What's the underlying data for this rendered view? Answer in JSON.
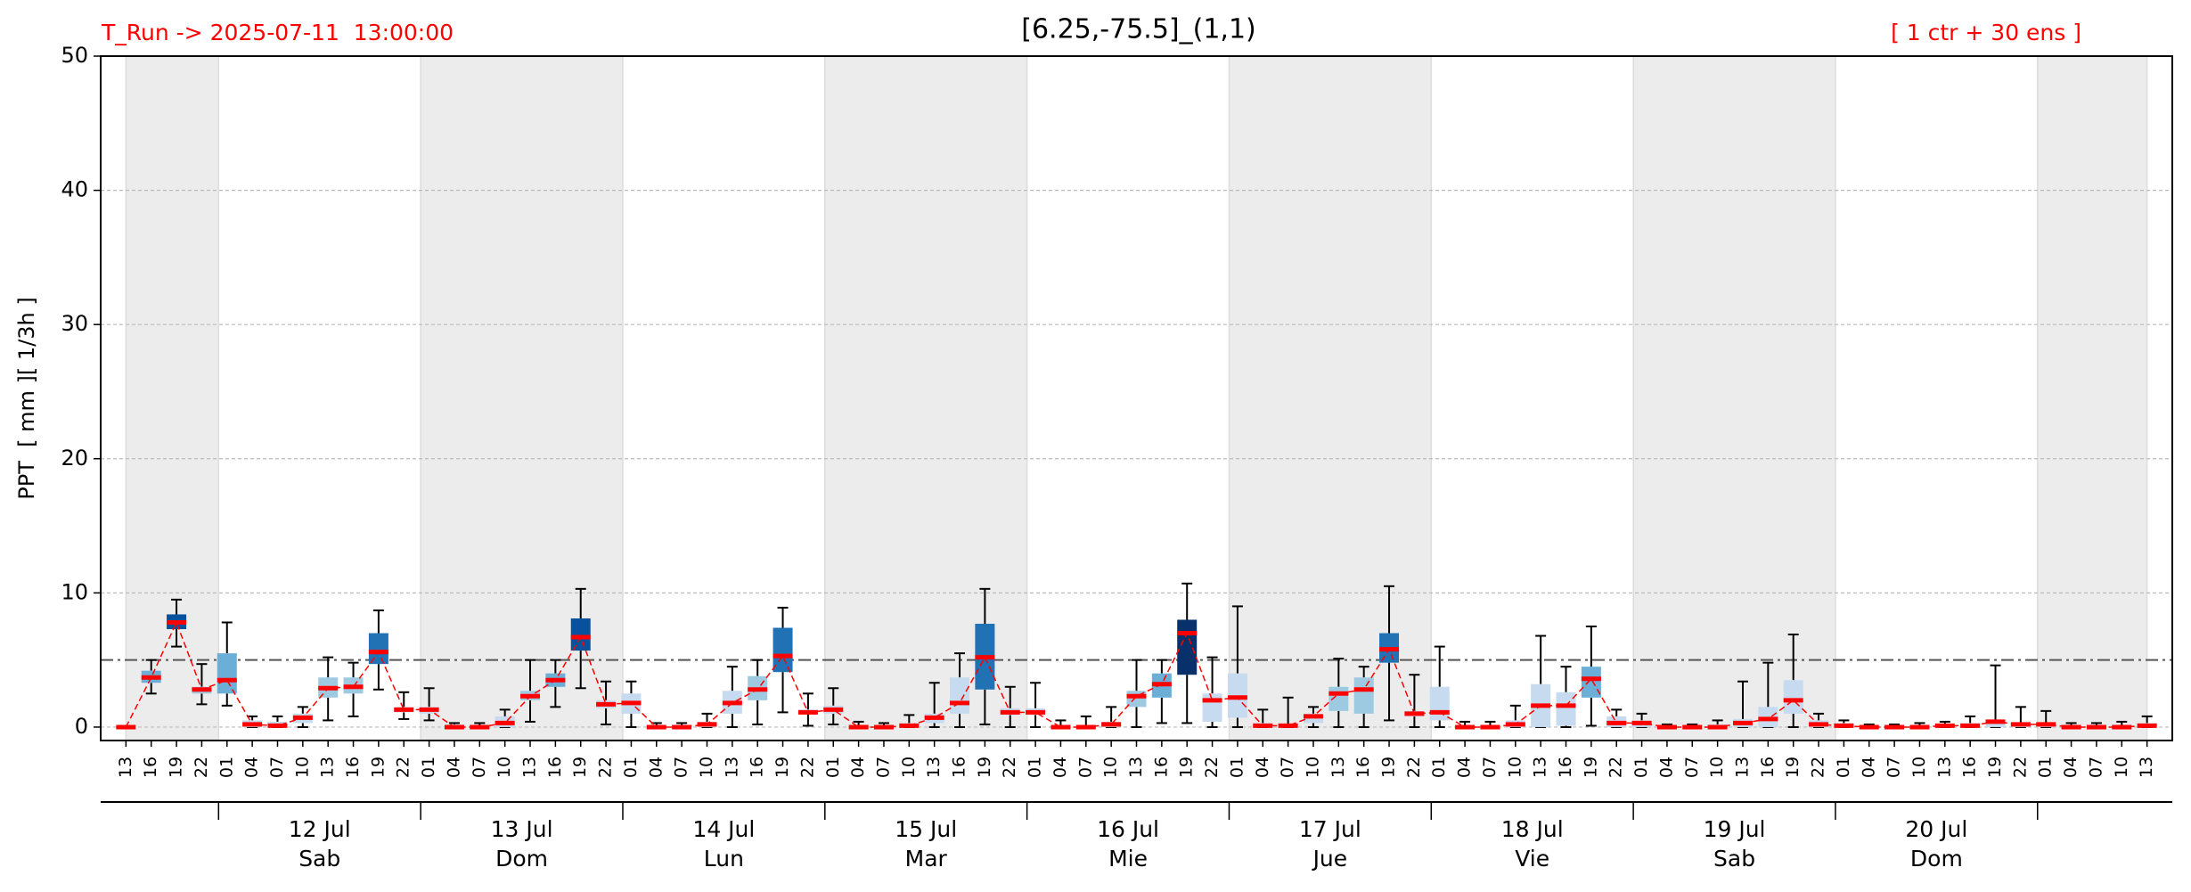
{
  "chart_data": {
    "type": "box",
    "title": "[6.25,-75.5]_(1,1)",
    "run_label": "T_Run -> 2025-07-11  13:00:00",
    "members_label": "[ 1 ctr + 30 ens ]",
    "y_label": "PPT  [ mm ][ 1/3h ]",
    "categories": [
      "13",
      "16",
      "19",
      "22",
      "01",
      "04",
      "07",
      "10",
      "13",
      "16",
      "19",
      "22",
      "01",
      "04",
      "07",
      "10",
      "13",
      "16",
      "19",
      "22",
      "01",
      "04",
      "07",
      "10",
      "13",
      "16",
      "19",
      "22",
      "01",
      "04",
      "07",
      "10",
      "13",
      "16",
      "19",
      "22",
      "01",
      "04",
      "07",
      "10",
      "13",
      "16",
      "19",
      "22",
      "01",
      "04",
      "07",
      "10",
      "13",
      "16",
      "19",
      "22",
      "01",
      "04",
      "07",
      "10",
      "13",
      "16",
      "19",
      "22",
      "01",
      "04",
      "07",
      "10",
      "13",
      "16",
      "19",
      "22",
      "01",
      "04",
      "07",
      "10",
      "13",
      "16",
      "19",
      "22",
      "01",
      "04",
      "07",
      "10",
      "13"
    ],
    "days": [
      {
        "date": "12 Jul",
        "weekday": "Sab"
      },
      {
        "date": "13 Jul",
        "weekday": "Dom"
      },
      {
        "date": "14 Jul",
        "weekday": "Lun"
      },
      {
        "date": "15 Jul",
        "weekday": "Mar"
      },
      {
        "date": "16 Jul",
        "weekday": "Mie"
      },
      {
        "date": "17 Jul",
        "weekday": "Jue"
      },
      {
        "date": "18 Jul",
        "weekday": "Vie"
      },
      {
        "date": "19 Jul",
        "weekday": "Sab"
      },
      {
        "date": "20 Jul",
        "weekday": "Dom"
      }
    ],
    "median": [
      0,
      3.7,
      7.8,
      2.8,
      3.5,
      0.2,
      0.1,
      0.7,
      2.9,
      3.0,
      5.6,
      1.3,
      1.3,
      0,
      0,
      0.3,
      2.3,
      3.5,
      6.7,
      1.7,
      1.8,
      0,
      0,
      0.2,
      1.8,
      2.8,
      5.3,
      1.1,
      1.3,
      0,
      0,
      0.1,
      0.7,
      1.8,
      5.2,
      1.1,
      1.1,
      0,
      0,
      0.2,
      2.3,
      3.2,
      7.0,
      2.0,
      2.2,
      0.1,
      0.1,
      0.8,
      2.5,
      2.8,
      5.8,
      1.0,
      1.1,
      0,
      0,
      0.2,
      1.6,
      1.6,
      3.6,
      0.3,
      0.3,
      0,
      0,
      0,
      0.3,
      0.6,
      2.0,
      0.2,
      0.1,
      0,
      0,
      0,
      0.1,
      0.1,
      0.4,
      0.2,
      0.2,
      0,
      0,
      0,
      0.1
    ],
    "q1": [
      0,
      3.3,
      7.3,
      2.5,
      2.5,
      0,
      0,
      0.3,
      2.2,
      2.5,
      4.7,
      1.1,
      1,
      0,
      0,
      0,
      2,
      3,
      5.7,
      1.4,
      1,
      0,
      0,
      0,
      1,
      2,
      4.1,
      1,
      1,
      0,
      0,
      0,
      0.3,
      1,
      2.8,
      0.9,
      0.9,
      0,
      0,
      0,
      1.5,
      2.2,
      3.9,
      0.4,
      0.7,
      0,
      0,
      0.3,
      1.2,
      1,
      4.8,
      0.8,
      0.5,
      0,
      0,
      0,
      0,
      0.1,
      2.2,
      0,
      0,
      0,
      0,
      0,
      0,
      0,
      1,
      0,
      0,
      0,
      0,
      0,
      0,
      0,
      0,
      0,
      0,
      0,
      0,
      0,
      0
    ],
    "q3": [
      0,
      4.2,
      8.4,
      3,
      5.5,
      0.5,
      0.4,
      1,
      3.7,
      3.7,
      7,
      1.5,
      1.5,
      0.2,
      0.1,
      0.8,
      2.7,
      4,
      8.1,
      2,
      2.5,
      0.1,
      0.1,
      0.4,
      2.7,
      3.8,
      7.4,
      1.3,
      1.6,
      0.1,
      0.1,
      0.3,
      1,
      3.7,
      7.7,
      1.4,
      1.4,
      0.1,
      0.1,
      0.4,
      2.7,
      4,
      8,
      2.5,
      4,
      0.3,
      0.2,
      1,
      3,
      3.7,
      7,
      1.2,
      3,
      0.1,
      0.1,
      0.5,
      3.2,
      2.6,
      4.5,
      0.8,
      0.5,
      0.1,
      0.1,
      0.2,
      0.6,
      1.5,
      3.5,
      0.5,
      0.3,
      0.1,
      0.1,
      0.1,
      0.2,
      0.3,
      0.5,
      0.3,
      0.3,
      0.1,
      0.1,
      0.1,
      0.3
    ],
    "whislo": [
      0,
      2.5,
      6,
      1.7,
      1.6,
      0,
      0,
      0,
      0.5,
      0.8,
      2.8,
      0.6,
      0.5,
      0,
      0,
      0,
      0.4,
      1.5,
      2.9,
      0.2,
      0,
      0,
      0,
      0,
      0,
      0.2,
      1.1,
      0.1,
      0.2,
      0,
      0,
      0,
      0,
      0,
      0.2,
      0,
      0,
      0,
      0,
      0,
      0,
      0.3,
      0.3,
      0,
      0,
      0,
      0,
      0,
      0,
      0,
      0.5,
      0,
      0,
      0,
      0,
      0,
      0,
      0,
      0.1,
      0,
      0,
      0,
      0,
      0,
      0,
      0,
      0,
      0,
      0,
      0,
      0,
      0,
      0,
      0,
      0,
      0,
      0,
      0,
      0,
      0,
      0
    ],
    "whishi": [
      0,
      5,
      9.5,
      4.7,
      7.8,
      0.8,
      0.8,
      1.5,
      5.2,
      4.8,
      8.7,
      2.6,
      2.9,
      0.3,
      0.3,
      1.3,
      5,
      5,
      10.3,
      3.4,
      3.4,
      0.3,
      0.3,
      1,
      4.5,
      5,
      8.9,
      2.5,
      2.9,
      0.4,
      0.3,
      0.9,
      3.3,
      5.5,
      10.3,
      3,
      3.3,
      0.5,
      0.8,
      1.5,
      5,
      5,
      10.7,
      5.2,
      9,
      1.3,
      2.2,
      1.5,
      5.1,
      4.5,
      10.5,
      3.9,
      6,
      0.4,
      0.4,
      1.6,
      6.8,
      4.5,
      7.5,
      1.3,
      1,
      0.2,
      0.2,
      0.5,
      3.4,
      4.8,
      6.9,
      1,
      0.5,
      0.2,
      0.2,
      0.3,
      0.4,
      0.8,
      4.6,
      1.5,
      1.2,
      0.3,
      0.3,
      0.4,
      0.8
    ],
    "box_colors": [
      "#c6dbef",
      "#6baed6",
      "#08519c",
      "#9ecae1",
      "#6baed6",
      "#c6dbef",
      "#c6dbef",
      "#c6dbef",
      "#9ecae1",
      "#9ecae1",
      "#2171b5",
      "#c6dbef",
      "#c6dbef",
      "#c6dbef",
      "#c6dbef",
      "#c6dbef",
      "#9ecae1",
      "#6baed6",
      "#08519c",
      "#c6dbef",
      "#c6dbef",
      "#c6dbef",
      "#c6dbef",
      "#c6dbef",
      "#c6dbef",
      "#9ecae1",
      "#2171b5",
      "#c6dbef",
      "#c6dbef",
      "#c6dbef",
      "#c6dbef",
      "#c6dbef",
      "#c6dbef",
      "#c6dbef",
      "#2171b5",
      "#c6dbef",
      "#c6dbef",
      "#c6dbef",
      "#c6dbef",
      "#c6dbef",
      "#9ecae1",
      "#6baed6",
      "#08306b",
      "#c6dbef",
      "#c6dbef",
      "#c6dbef",
      "#c6dbef",
      "#c6dbef",
      "#9ecae1",
      "#9ecae1",
      "#2171b5",
      "#c6dbef",
      "#c6dbef",
      "#c6dbef",
      "#c6dbef",
      "#c6dbef",
      "#c6dbef",
      "#c6dbef",
      "#6baed6",
      "#c6dbef",
      "#c6dbef",
      "#c6dbef",
      "#c6dbef",
      "#c6dbef",
      "#c6dbef",
      "#c6dbef",
      "#c6dbef",
      "#c6dbef",
      "#c6dbef",
      "#c6dbef",
      "#c6dbef",
      "#c6dbef",
      "#c6dbef",
      "#c6dbef",
      "#c6dbef",
      "#c6dbef",
      "#c6dbef",
      "#c6dbef",
      "#c6dbef",
      "#c6dbef",
      "#c6dbef"
    ],
    "median_color": "#ff0000",
    "threshold": 5,
    "ylim": [
      -1,
      50
    ],
    "yticks": [
      0,
      10,
      20,
      30,
      40,
      50
    ],
    "grid": true
  }
}
